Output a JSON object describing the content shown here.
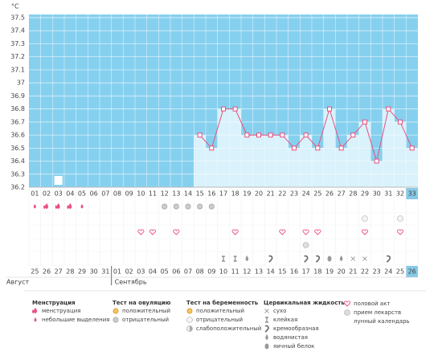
{
  "chart_data": {
    "type": "line",
    "y_label": "°C",
    "categories": [
      "01",
      "02",
      "03",
      "04",
      "05",
      "06",
      "07",
      "08",
      "09",
      "10",
      "11",
      "12",
      "13",
      "14",
      "15",
      "16",
      "17",
      "18",
      "19",
      "20",
      "21",
      "22",
      "23",
      "24",
      "25",
      "26",
      "27",
      "28",
      "29",
      "30",
      "31",
      "32",
      "33"
    ],
    "values": [
      null,
      null,
      null,
      null,
      null,
      null,
      null,
      null,
      null,
      null,
      null,
      null,
      null,
      null,
      36.6,
      36.5,
      36.8,
      36.8,
      36.6,
      36.6,
      36.6,
      36.6,
      36.5,
      36.6,
      36.5,
      36.8,
      36.5,
      36.6,
      36.7,
      36.4,
      36.8,
      36.7,
      36.5
    ],
    "color": "#e8507e",
    "background": "#86d0ef",
    "bar_color": "#d9f2fb",
    "ylim": [
      36.2,
      37.5
    ],
    "yticks": [
      36.2,
      36.3,
      36.4,
      36.5,
      36.6,
      36.7,
      36.8,
      36.9,
      37,
      37.1,
      37.2,
      37.3,
      37.4,
      37.5
    ],
    "grid": true,
    "dates": [
      "25",
      "26",
      "27",
      "28",
      "29",
      "30",
      "31",
      "01",
      "02",
      "03",
      "04",
      "05",
      "06",
      "07",
      "08",
      "09",
      "10",
      "11",
      "12",
      "13",
      "14",
      "15",
      "16",
      "17",
      "18",
      "19",
      "20",
      "21",
      "22",
      "23",
      "24",
      "25",
      "26"
    ],
    "date_colors": [
      "#444",
      "#444",
      "#e8507e",
      "#e8507e",
      "#444",
      "#444",
      "#444",
      "#444",
      "#444",
      "#e8507e",
      "#e8507e",
      "#444",
      "#444",
      "#444",
      "#444",
      "#444",
      "#e8507e",
      "#e8507e",
      "#444",
      "#444",
      "#444",
      "#444",
      "#444",
      "#e8507e",
      "#e8507e",
      "#444",
      "#444",
      "#444",
      "#444",
      "#444",
      "#e8507e",
      "#e8507e",
      "#444"
    ],
    "months": [
      "Август",
      "Сентябрь"
    ]
  },
  "legend": [
    {
      "title": "Менструация",
      "items": [
        "менструация",
        "небольшие выделения"
      ]
    },
    {
      "title": "Тест на овуляцию",
      "items": [
        "положительный",
        "отрицательный"
      ]
    },
    {
      "title": "Тест на беременность",
      "items": [
        "положительный",
        "отрицательный",
        "слабоположительный"
      ]
    },
    {
      "title": "Цервикальная жидкость",
      "items": [
        "сухо",
        "клейкая",
        "кремообразная",
        "водянистая",
        "яичный белок"
      ]
    },
    {
      "items": [
        "половой акт",
        "прием лекарств",
        "лунный календарь"
      ]
    }
  ]
}
